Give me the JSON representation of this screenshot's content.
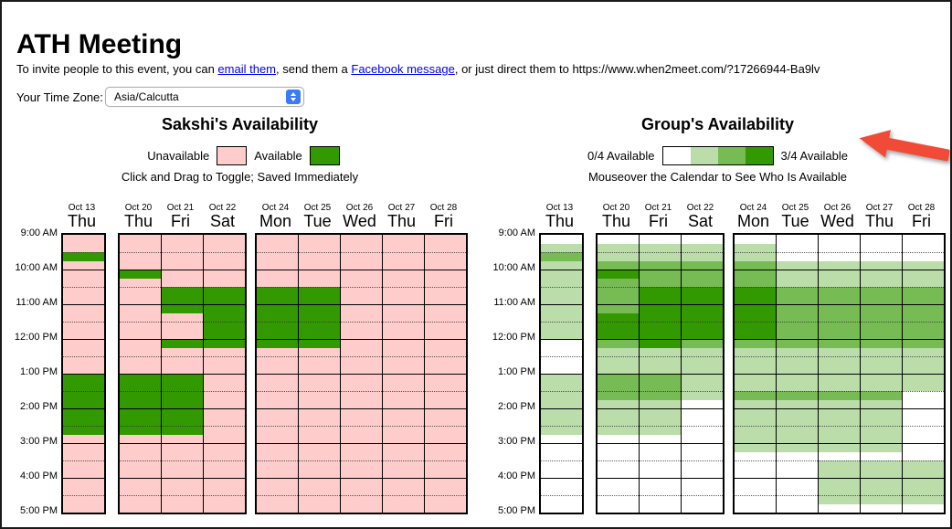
{
  "page": {
    "title": "ATH Meeting"
  },
  "invite": {
    "prefix": "To invite people to this event, you can ",
    "email_link": "email them",
    "mid": ", send them a ",
    "facebook_link": "Facebook message",
    "suffix": ", or just direct them to https://www.when2meet.com/?17266944-Ba9lv"
  },
  "timezone": {
    "label": "Your Time Zone:",
    "selected": "Asia/Calcutta"
  },
  "left_panel": {
    "heading": "Sakshi's Availability",
    "legend_unavailable": "Unavailable",
    "legend_available": "Available",
    "caption": "Click and Drag to Toggle; Saved Immediately"
  },
  "right_panel": {
    "heading": "Group's Availability",
    "legend_min": "0/4 Available",
    "legend_max": "3/4 Available",
    "caption": "Mouseover the Calendar to See Who Is Available"
  },
  "colors": {
    "available": "#339900",
    "unavailable": "#FFCCCC",
    "group_scale": [
      "#FFFFFF",
      "#BBDDAA",
      "#77BB55",
      "#339900"
    ],
    "arrow": "#F14B38",
    "select_accent": "#3B7CF5",
    "link": "#0000EE"
  },
  "calendar": {
    "time_labels": [
      "9:00 AM",
      "10:00 AM",
      "11:00 AM",
      "12:00 PM",
      "1:00 PM",
      "2:00 PM",
      "3:00 PM",
      "4:00 PM",
      "5:00 PM"
    ],
    "slots_per_hour": 4,
    "day_groups": [
      [
        {
          "date": "Oct 13",
          "day": "Thu"
        }
      ],
      [
        {
          "date": "Oct 20",
          "day": "Thu"
        },
        {
          "date": "Oct 21",
          "day": "Fri"
        },
        {
          "date": "Oct 22",
          "day": "Sat"
        }
      ],
      [
        {
          "date": "Oct 24",
          "day": "Mon"
        },
        {
          "date": "Oct 25",
          "day": "Tue"
        },
        {
          "date": "Oct 26",
          "day": "Wed"
        },
        {
          "date": "Oct 27",
          "day": "Thu"
        },
        {
          "date": "Oct 28",
          "day": "Fri"
        }
      ]
    ],
    "personal_levels": [
      [
        "00100000000000001111111000000000"
      ],
      [
        "00001000000000001111111000000000",
        "00000011100010001111111000000000",
        "00000011111110000000000000000000"
      ],
      [
        "00000011111110000000000000000000",
        "00000011111110000000000000000000",
        "00000000000000000000000000000000",
        "00000000000000000000000000000000",
        "00000000000000000000000000000000"
      ]
    ],
    "group_levels": [
      [
        "01211111111100001111111000000000"
      ],
      [
        "01123222233321112221111000000000",
        "01122233333331112221111000000000",
        "01122233333321111110000000000000"
      ],
      [
        "01122233333321111121111110000000",
        "00011122222221111121111110000000",
        "00011122222221111121111110111110",
        "00011122222221111121111110111110",
        "00011122222221111100000000111110"
      ]
    ]
  }
}
